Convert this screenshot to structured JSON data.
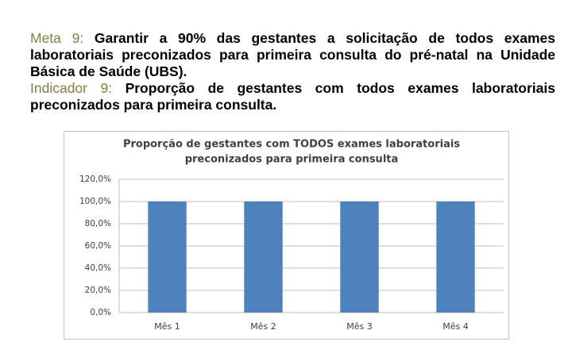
{
  "meta": {
    "label": "Meta 9:",
    "text": "Garantir a 90% das gestantes a solicitação de todos exames laboratoriais preconizados para primeira consulta do pré-natal na Unidade Básica de Saúde (UBS)."
  },
  "indicador": {
    "label": "Indicador 9:",
    "text": "Proporção de gestantes com todos exames laboratoriais preconizados para primeira consulta."
  },
  "chart_data": {
    "type": "bar",
    "title": [
      "Proporção de gestantes com TODOS exames laboratoriais",
      "preconizados para  primeira consulta"
    ],
    "categories": [
      "Mês 1",
      "Mês 2",
      "Mês 3",
      "Mês 4"
    ],
    "values": [
      100,
      100,
      100,
      100
    ],
    "color": "#4f81bd",
    "ylim": [
      0,
      120
    ],
    "yticks": [
      {
        "value": 0,
        "label": "0,0%"
      },
      {
        "value": 20,
        "label": "20,0%"
      },
      {
        "value": 40,
        "label": "40,0%"
      },
      {
        "value": 60,
        "label": "60,0%"
      },
      {
        "value": 80,
        "label": "80,0%"
      },
      {
        "value": 100,
        "label": "100,0%"
      },
      {
        "value": 120,
        "label": "120,0%"
      }
    ],
    "grid": true
  }
}
